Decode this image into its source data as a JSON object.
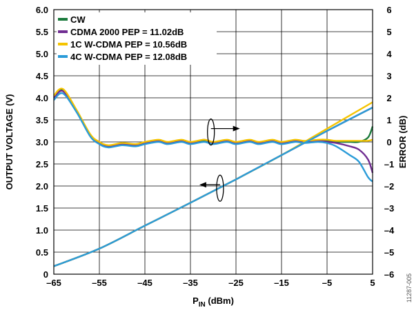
{
  "chart_data": {
    "type": "line",
    "xlabel": {
      "main": "P",
      "sub": "IN",
      "rest": " (dBm)"
    },
    "ylabel_left": "OUTPUT VOLTAGE (V)",
    "ylabel_right": "ERROR (dB)",
    "xlim": [
      -65,
      5
    ],
    "ylim_left": [
      0,
      6
    ],
    "ylim_right": [
      -6,
      6
    ],
    "x_ticks": [
      -65,
      -55,
      -45,
      -35,
      -25,
      -15,
      -5,
      5
    ],
    "x_tick_labels": [
      "–65",
      "–55",
      "–45",
      "–35",
      "–25",
      "–15",
      "–5",
      "5"
    ],
    "y_left_ticks": [
      0,
      0.5,
      1.0,
      1.5,
      2.0,
      2.5,
      3.0,
      3.5,
      4.0,
      4.5,
      5.0,
      5.5,
      6.0
    ],
    "y_left_tick_labels": [
      "0",
      "0.5",
      "1.0",
      "1.5",
      "2.0",
      "2.5",
      "3.0",
      "3.5",
      "4.0",
      "4.5",
      "5.0",
      "5.5",
      "6.0"
    ],
    "y_right_ticks": [
      -6,
      -5,
      -4,
      -3,
      -2,
      -1,
      0,
      1,
      2,
      3,
      4,
      5,
      6
    ],
    "y_right_tick_labels": [
      "–6",
      "–5",
      "–4",
      "–3",
      "–2",
      "–1",
      "0",
      "1",
      "2",
      "3",
      "4",
      "5",
      "6"
    ],
    "grid": true,
    "legend_position": "top-left",
    "figure_id": "11287-005",
    "series": [
      {
        "name": "CW",
        "color": "#1a7a3c",
        "output_voltage": [
          [
            -65,
            0.18
          ],
          [
            -55,
            0.58
          ],
          [
            -45,
            1.1
          ],
          [
            -35,
            1.62
          ],
          [
            -25,
            2.15
          ],
          [
            -15,
            2.7
          ],
          [
            -5,
            3.25
          ],
          [
            5,
            3.78
          ]
        ],
        "error_db": [
          [
            -65,
            2.0
          ],
          [
            -63,
            2.35
          ],
          [
            -60,
            1.4
          ],
          [
            -57,
            0.3
          ],
          [
            -55,
            -0.05
          ],
          [
            -53,
            -0.2
          ],
          [
            -50,
            -0.1
          ],
          [
            -47,
            -0.15
          ],
          [
            -45,
            -0.05
          ],
          [
            -42,
            0.05
          ],
          [
            -40,
            -0.05
          ],
          [
            -37,
            0.05
          ],
          [
            -35,
            -0.05
          ],
          [
            -32,
            0.05
          ],
          [
            -30,
            -0.05
          ],
          [
            -27,
            0.05
          ],
          [
            -25,
            -0.05
          ],
          [
            -22,
            0.05
          ],
          [
            -20,
            -0.05
          ],
          [
            -17,
            0.05
          ],
          [
            -15,
            -0.05
          ],
          [
            -12,
            0.05
          ],
          [
            -10,
            0.0
          ],
          [
            -7,
            0.05
          ],
          [
            -5,
            0.05
          ],
          [
            -3,
            0.0
          ],
          [
            0,
            0.0
          ],
          [
            2,
            0.0
          ],
          [
            4,
            0.2
          ],
          [
            5,
            0.7
          ]
        ]
      },
      {
        "name": "CDMA 2000 PEP = 11.02dB",
        "color": "#6f2c91",
        "output_voltage": [
          [
            -65,
            0.18
          ],
          [
            -55,
            0.58
          ],
          [
            -45,
            1.1
          ],
          [
            -35,
            1.62
          ],
          [
            -25,
            2.15
          ],
          [
            -15,
            2.7
          ],
          [
            -5,
            3.25
          ],
          [
            5,
            3.78
          ]
        ],
        "error_db": [
          [
            -65,
            2.0
          ],
          [
            -63,
            2.3
          ],
          [
            -60,
            1.4
          ],
          [
            -57,
            0.3
          ],
          [
            -55,
            -0.05
          ],
          [
            -53,
            -0.2
          ],
          [
            -50,
            -0.1
          ],
          [
            -47,
            -0.15
          ],
          [
            -45,
            -0.05
          ],
          [
            -42,
            0.05
          ],
          [
            -40,
            -0.05
          ],
          [
            -37,
            0.05
          ],
          [
            -35,
            -0.05
          ],
          [
            -32,
            0.1
          ],
          [
            -30,
            -0.05
          ],
          [
            -27,
            0.05
          ],
          [
            -25,
            -0.05
          ],
          [
            -22,
            0.05
          ],
          [
            -20,
            -0.05
          ],
          [
            -17,
            0.05
          ],
          [
            -15,
            -0.05
          ],
          [
            -12,
            0.05
          ],
          [
            -10,
            0.0
          ],
          [
            -7,
            0.05
          ],
          [
            -5,
            0.0
          ],
          [
            -3,
            -0.05
          ],
          [
            0,
            -0.2
          ],
          [
            2,
            -0.35
          ],
          [
            4,
            -0.8
          ],
          [
            5,
            -1.4
          ]
        ]
      },
      {
        "name": "1C W-CDMA PEP = 10.56dB",
        "color": "#f5c400",
        "output_voltage": [
          [
            -65,
            0.18
          ],
          [
            -55,
            0.58
          ],
          [
            -45,
            1.1
          ],
          [
            -35,
            1.62
          ],
          [
            -25,
            2.15
          ],
          [
            -15,
            2.7
          ],
          [
            -5,
            3.3
          ],
          [
            5,
            3.9
          ]
        ],
        "error_db": [
          [
            -65,
            2.1
          ],
          [
            -63,
            2.4
          ],
          [
            -60,
            1.45
          ],
          [
            -57,
            0.35
          ],
          [
            -55,
            0.0
          ],
          [
            -53,
            -0.15
          ],
          [
            -50,
            -0.05
          ],
          [
            -47,
            -0.1
          ],
          [
            -45,
            0.0
          ],
          [
            -42,
            0.1
          ],
          [
            -40,
            0.0
          ],
          [
            -37,
            0.1
          ],
          [
            -35,
            0.0
          ],
          [
            -32,
            0.1
          ],
          [
            -30,
            0.0
          ],
          [
            -27,
            0.1
          ],
          [
            -25,
            0.0
          ],
          [
            -22,
            0.1
          ],
          [
            -20,
            0.0
          ],
          [
            -17,
            0.1
          ],
          [
            -15,
            0.0
          ],
          [
            -12,
            0.1
          ],
          [
            -10,
            0.05
          ],
          [
            -7,
            0.1
          ],
          [
            -5,
            0.1
          ],
          [
            -3,
            0.05
          ],
          [
            0,
            0.05
          ],
          [
            2,
            0.05
          ],
          [
            4,
            0.05
          ],
          [
            5,
            0.1
          ]
        ]
      },
      {
        "name": "4C W-CDMA PEP = 12.08dB",
        "color": "#2a9bd8",
        "output_voltage": [
          [
            -65,
            0.18
          ],
          [
            -55,
            0.58
          ],
          [
            -45,
            1.1
          ],
          [
            -35,
            1.62
          ],
          [
            -25,
            2.15
          ],
          [
            -15,
            2.7
          ],
          [
            -5,
            3.25
          ],
          [
            5,
            3.78
          ]
        ],
        "error_db": [
          [
            -65,
            1.9
          ],
          [
            -63,
            2.2
          ],
          [
            -60,
            1.35
          ],
          [
            -57,
            0.25
          ],
          [
            -55,
            -0.1
          ],
          [
            -53,
            -0.25
          ],
          [
            -50,
            -0.15
          ],
          [
            -47,
            -0.2
          ],
          [
            -45,
            -0.1
          ],
          [
            -42,
            0.0
          ],
          [
            -40,
            -0.1
          ],
          [
            -37,
            0.0
          ],
          [
            -35,
            -0.1
          ],
          [
            -32,
            0.0
          ],
          [
            -30,
            -0.1
          ],
          [
            -27,
            0.0
          ],
          [
            -25,
            -0.1
          ],
          [
            -22,
            0.0
          ],
          [
            -20,
            -0.1
          ],
          [
            -17,
            0.0
          ],
          [
            -15,
            -0.1
          ],
          [
            -12,
            0.0
          ],
          [
            -10,
            -0.05
          ],
          [
            -7,
            0.0
          ],
          [
            -5,
            -0.05
          ],
          [
            -3,
            -0.2
          ],
          [
            0,
            -0.6
          ],
          [
            2,
            -0.9
          ],
          [
            4,
            -1.6
          ],
          [
            5,
            -1.8
          ]
        ]
      }
    ]
  }
}
